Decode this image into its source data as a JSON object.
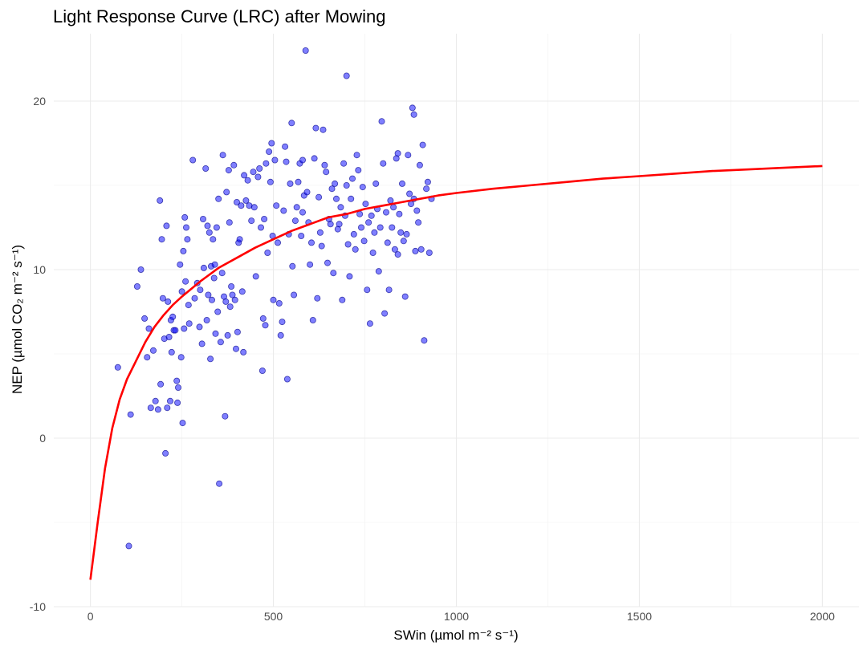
{
  "chart_data": {
    "type": "scatter",
    "title": "Light Response Curve (LRC) after Mowing",
    "xlabel": "SWin (µmol m⁻² s⁻¹)",
    "ylabel": "NEP (µmol CO₂ m⁻² s⁻¹)",
    "xlim": [
      -100,
      2100
    ],
    "ylim": [
      -10,
      24
    ],
    "x_ticks": [
      0,
      500,
      1000,
      1500,
      2000
    ],
    "y_ticks": [
      -10,
      0,
      10,
      20
    ],
    "grid": true,
    "legend": "none",
    "colors": {
      "points": "#0000ff",
      "curve": "#ff0000"
    },
    "series": [
      {
        "kind": "points",
        "points": [
          [
            75,
            4.2
          ],
          [
            105,
            -6.4
          ],
          [
            110,
            1.4
          ],
          [
            128,
            9.0
          ],
          [
            138,
            10.0
          ],
          [
            148,
            7.1
          ],
          [
            155,
            4.8
          ],
          [
            160,
            6.5
          ],
          [
            165,
            1.8
          ],
          [
            172,
            5.2
          ],
          [
            178,
            2.2
          ],
          [
            185,
            1.7
          ],
          [
            190,
            14.1
          ],
          [
            192,
            3.2
          ],
          [
            195,
            11.8
          ],
          [
            198,
            8.3
          ],
          [
            202,
            5.9
          ],
          [
            205,
            -0.9
          ],
          [
            208,
            12.6
          ],
          [
            210,
            1.8
          ],
          [
            212,
            8.1
          ],
          [
            215,
            6.0
          ],
          [
            218,
            2.2
          ],
          [
            220,
            7.0
          ],
          [
            222,
            5.1
          ],
          [
            225,
            7.2
          ],
          [
            228,
            6.4
          ],
          [
            232,
            6.4
          ],
          [
            236,
            3.4
          ],
          [
            238,
            2.1
          ],
          [
            240,
            3.0
          ],
          [
            245,
            10.3
          ],
          [
            248,
            4.8
          ],
          [
            250,
            8.7
          ],
          [
            252,
            0.9
          ],
          [
            254,
            11.1
          ],
          [
            256,
            6.5
          ],
          [
            258,
            13.1
          ],
          [
            260,
            9.3
          ],
          [
            262,
            12.5
          ],
          [
            265,
            11.8
          ],
          [
            268,
            7.9
          ],
          [
            270,
            6.8
          ],
          [
            280,
            16.5
          ],
          [
            285,
            8.3
          ],
          [
            292,
            9.2
          ],
          [
            298,
            6.6
          ],
          [
            300,
            8.8
          ],
          [
            305,
            5.6
          ],
          [
            308,
            13.0
          ],
          [
            310,
            10.1
          ],
          [
            315,
            16.0
          ],
          [
            318,
            7.0
          ],
          [
            320,
            12.6
          ],
          [
            322,
            8.5
          ],
          [
            325,
            12.2
          ],
          [
            328,
            4.7
          ],
          [
            330,
            10.2
          ],
          [
            332,
            8.2
          ],
          [
            335,
            11.8
          ],
          [
            338,
            9.5
          ],
          [
            340,
            10.3
          ],
          [
            342,
            6.2
          ],
          [
            345,
            12.5
          ],
          [
            348,
            7.5
          ],
          [
            350,
            14.2
          ],
          [
            352,
            -2.7
          ],
          [
            356,
            5.7
          ],
          [
            360,
            9.8
          ],
          [
            362,
            16.8
          ],
          [
            365,
            8.4
          ],
          [
            368,
            1.3
          ],
          [
            370,
            8.1
          ],
          [
            372,
            14.6
          ],
          [
            375,
            6.1
          ],
          [
            378,
            15.9
          ],
          [
            380,
            12.8
          ],
          [
            382,
            7.8
          ],
          [
            385,
            9.0
          ],
          [
            388,
            8.5
          ],
          [
            392,
            16.2
          ],
          [
            395,
            8.2
          ],
          [
            398,
            5.3
          ],
          [
            400,
            14.0
          ],
          [
            402,
            6.3
          ],
          [
            405,
            11.6
          ],
          [
            408,
            11.8
          ],
          [
            412,
            13.8
          ],
          [
            415,
            8.7
          ],
          [
            418,
            5.1
          ],
          [
            420,
            15.6
          ],
          [
            425,
            14.1
          ],
          [
            430,
            15.3
          ],
          [
            434,
            13.8
          ],
          [
            440,
            12.9
          ],
          [
            445,
            15.8
          ],
          [
            448,
            13.7
          ],
          [
            452,
            9.6
          ],
          [
            458,
            15.5
          ],
          [
            462,
            16.0
          ],
          [
            466,
            12.5
          ],
          [
            470,
            4.0
          ],
          [
            472,
            7.1
          ],
          [
            475,
            13.0
          ],
          [
            478,
            6.7
          ],
          [
            480,
            16.3
          ],
          [
            484,
            11.0
          ],
          [
            488,
            17.0
          ],
          [
            492,
            15.2
          ],
          [
            495,
            17.5
          ],
          [
            498,
            12.0
          ],
          [
            500,
            8.2
          ],
          [
            504,
            16.5
          ],
          [
            508,
            13.8
          ],
          [
            512,
            11.6
          ],
          [
            516,
            8.0
          ],
          [
            520,
            6.1
          ],
          [
            524,
            6.9
          ],
          [
            528,
            13.5
          ],
          [
            532,
            17.3
          ],
          [
            535,
            16.4
          ],
          [
            538,
            3.5
          ],
          [
            542,
            12.1
          ],
          [
            546,
            15.1
          ],
          [
            550,
            18.7
          ],
          [
            552,
            10.2
          ],
          [
            556,
            8.5
          ],
          [
            560,
            12.9
          ],
          [
            564,
            13.7
          ],
          [
            568,
            15.2
          ],
          [
            572,
            16.3
          ],
          [
            576,
            12.0
          ],
          [
            580,
            13.4
          ],
          [
            584,
            14.4
          ],
          [
            588,
            23.0
          ],
          [
            592,
            14.6
          ],
          [
            596,
            12.8
          ],
          [
            600,
            10.3
          ],
          [
            604,
            11.6
          ],
          [
            608,
            7.0
          ],
          [
            612,
            16.6
          ],
          [
            616,
            18.4
          ],
          [
            620,
            8.3
          ],
          [
            624,
            14.3
          ],
          [
            628,
            12.2
          ],
          [
            632,
            11.4
          ],
          [
            636,
            18.3
          ],
          [
            640,
            16.2
          ],
          [
            644,
            15.8
          ],
          [
            648,
            10.4
          ],
          [
            652,
            13.0
          ],
          [
            656,
            12.7
          ],
          [
            660,
            14.8
          ],
          [
            664,
            9.8
          ],
          [
            668,
            15.1
          ],
          [
            672,
            14.2
          ],
          [
            676,
            12.4
          ],
          [
            680,
            12.7
          ],
          [
            684,
            13.7
          ],
          [
            688,
            8.2
          ],
          [
            692,
            16.3
          ],
          [
            696,
            13.2
          ],
          [
            700,
            21.5
          ],
          [
            704,
            11.5
          ],
          [
            708,
            9.6
          ],
          [
            712,
            14.2
          ],
          [
            716,
            15.4
          ],
          [
            720,
            12.1
          ],
          [
            724,
            11.2
          ],
          [
            728,
            16.8
          ],
          [
            732,
            15.9
          ],
          [
            736,
            13.3
          ],
          [
            740,
            12.5
          ],
          [
            744,
            14.9
          ],
          [
            748,
            11.7
          ],
          [
            752,
            13.9
          ],
          [
            756,
            8.8
          ],
          [
            760,
            12.8
          ],
          [
            764,
            6.8
          ],
          [
            768,
            13.2
          ],
          [
            772,
            11.0
          ],
          [
            776,
            12.2
          ],
          [
            780,
            15.1
          ],
          [
            784,
            13.6
          ],
          [
            788,
            9.9
          ],
          [
            792,
            12.5
          ],
          [
            796,
            18.8
          ],
          [
            800,
            16.3
          ],
          [
            804,
            7.4
          ],
          [
            808,
            13.4
          ],
          [
            812,
            11.6
          ],
          [
            816,
            8.8
          ],
          [
            820,
            14.1
          ],
          [
            824,
            12.5
          ],
          [
            828,
            13.7
          ],
          [
            832,
            11.2
          ],
          [
            836,
            16.6
          ],
          [
            840,
            10.9
          ],
          [
            844,
            13.3
          ],
          [
            848,
            12.2
          ],
          [
            852,
            15.1
          ],
          [
            856,
            11.7
          ],
          [
            860,
            8.4
          ],
          [
            864,
            12.1
          ],
          [
            868,
            16.8
          ],
          [
            872,
            14.5
          ],
          [
            876,
            13.9
          ],
          [
            880,
            19.6
          ],
          [
            884,
            14.2
          ],
          [
            888,
            11.1
          ],
          [
            892,
            13.5
          ],
          [
            896,
            12.8
          ],
          [
            900,
            16.2
          ],
          [
            904,
            11.2
          ],
          [
            908,
            17.4
          ],
          [
            912,
            5.8
          ],
          [
            918,
            14.8
          ],
          [
            922,
            15.2
          ],
          [
            926,
            11.0
          ],
          [
            932,
            14.2
          ],
          [
            884,
            19.2
          ],
          [
            840,
            16.9
          ],
          [
            700,
            15.0
          ],
          [
            580,
            16.5
          ]
        ]
      },
      {
        "kind": "curve",
        "points": [
          [
            0,
            -8.4
          ],
          [
            20,
            -5.0
          ],
          [
            40,
            -1.8
          ],
          [
            60,
            0.6
          ],
          [
            80,
            2.3
          ],
          [
            100,
            3.5
          ],
          [
            125,
            4.6
          ],
          [
            150,
            5.7
          ],
          [
            175,
            6.6
          ],
          [
            200,
            7.3
          ],
          [
            225,
            7.9
          ],
          [
            250,
            8.4
          ],
          [
            300,
            9.3
          ],
          [
            350,
            10.1
          ],
          [
            400,
            10.7
          ],
          [
            450,
            11.3
          ],
          [
            500,
            11.8
          ],
          [
            550,
            12.3
          ],
          [
            600,
            12.7
          ],
          [
            650,
            13.1
          ],
          [
            700,
            13.3
          ],
          [
            750,
            13.6
          ],
          [
            800,
            13.8
          ],
          [
            850,
            14.0
          ],
          [
            900,
            14.2
          ],
          [
            950,
            14.4
          ],
          [
            1000,
            14.55
          ],
          [
            1100,
            14.8
          ],
          [
            1200,
            15.0
          ],
          [
            1300,
            15.2
          ],
          [
            1400,
            15.4
          ],
          [
            1500,
            15.55
          ],
          [
            1600,
            15.7
          ],
          [
            1700,
            15.85
          ],
          [
            1800,
            15.95
          ],
          [
            1900,
            16.05
          ],
          [
            2000,
            16.15
          ]
        ]
      }
    ]
  }
}
